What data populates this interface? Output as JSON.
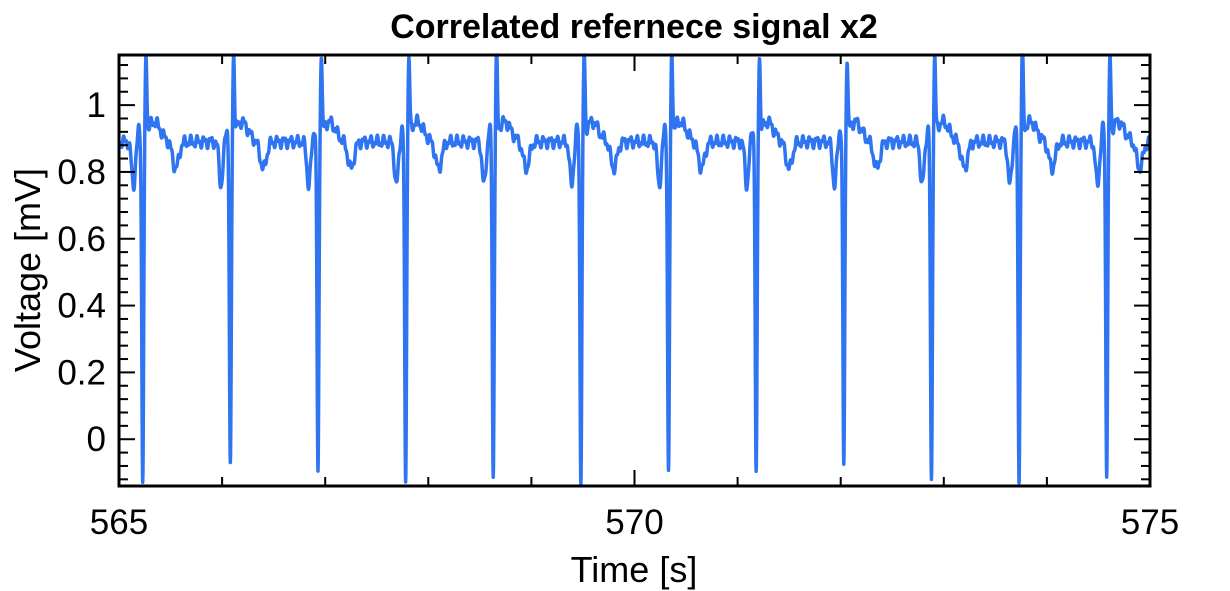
{
  "chart_data": {
    "type": "line",
    "title": "Correlated refernece signal x2",
    "xlabel": "Time [s]",
    "ylabel": "Voltage [mV]",
    "xlim": [
      565,
      575
    ],
    "ylim": [
      -0.14,
      1.15
    ],
    "x_ticks": [
      565,
      570,
      575
    ],
    "x_tick_labels": [
      "565",
      "570",
      "575"
    ],
    "y_ticks": [
      0,
      0.2,
      0.4,
      0.6,
      0.8,
      1
    ],
    "y_tick_labels": [
      "0",
      "0.2",
      "0.4",
      "0.6",
      "0.8",
      "1"
    ],
    "grid": false,
    "line_color": "#2f74f0",
    "series": [
      {
        "beat_times": [
          565.25,
          566.1,
          566.95,
          567.8,
          568.65,
          569.5,
          570.35,
          571.2,
          572.05,
          572.9,
          573.75,
          574.6
        ],
        "r_peak_values": [
          1.13,
          1.13,
          1.13,
          1.12,
          1.13,
          1.13,
          1.13,
          1.12,
          1.12,
          1.12,
          1.15,
          1.12
        ],
        "s_trough_values": [
          -0.14,
          -0.1,
          -0.11,
          -0.14,
          -0.12,
          -0.13,
          -0.11,
          -0.12,
          -0.09,
          -0.14,
          -0.13,
          -0.11
        ],
        "baseline": 0.89
      }
    ]
  }
}
